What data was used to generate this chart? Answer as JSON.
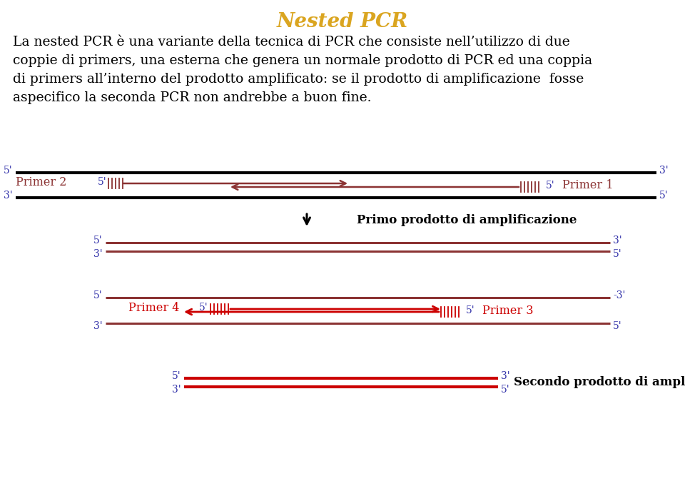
{
  "title": "Nested PCR",
  "title_color": "#DAA520",
  "title_fontsize": 20,
  "body_text_line1": "La nested PCR è una variante della tecnica di PCR che consiste nell’utilizzo di due",
  "body_text_line2": "coppie di primers, una esterna che genera un normale prodotto di PCR ed una coppia",
  "body_text_line3": "di primers all’interno del prodotto amplificato: se il prodotto di amplificazione  fosse",
  "body_text_line4": "aspecifico la seconda PCR non andrebbe a buon fine.",
  "body_color": "#000000",
  "body_fontsize": 13.5,
  "blue_label_color": "#3333AA",
  "dark_red_color": "#8B3333",
  "bright_red_color": "#CC0000",
  "black_color": "#000000",
  "label_fontsize": 10,
  "primer_label_fontsize": 11.5,
  "annotation_fontsize": 12
}
